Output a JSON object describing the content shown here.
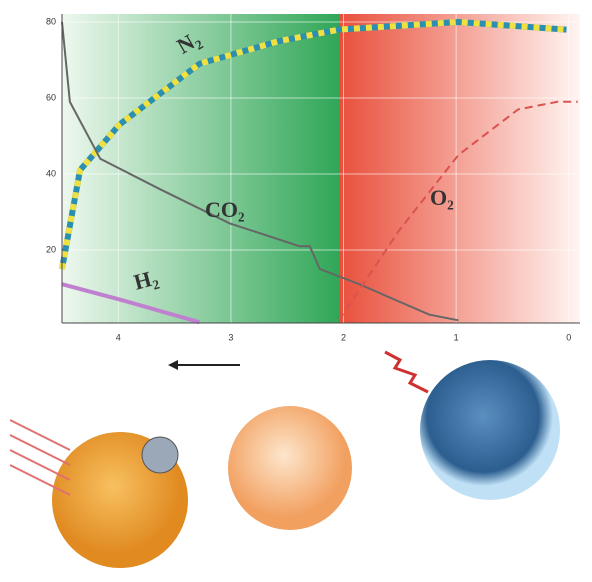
{
  "chart_data": {
    "type": "line",
    "xlim": [
      4.5,
      -0.1
    ],
    "xticks": [
      4,
      3,
      2,
      1,
      0
    ],
    "ylim": [
      0,
      80
    ],
    "yticks": [
      20,
      40,
      60,
      80
    ],
    "grid": true,
    "series": [
      {
        "name": "N₂",
        "color": "#2a8fb0",
        "x": [
          4.5,
          4.34,
          3.99,
          3.28,
          2.57,
          2.04,
          0.98,
          0.02
        ],
        "values": [
          15,
          41,
          53,
          69,
          75,
          78,
          80,
          78
        ]
      },
      {
        "name": "CO₂",
        "color": "#666666",
        "x": [
          4.5,
          4.43,
          4.16,
          3.63,
          3.01,
          2.39,
          2.3,
          2.21,
          1.86,
          1.24,
          0.98
        ],
        "values": [
          80,
          59,
          44,
          36,
          27,
          21,
          21,
          15,
          11,
          3,
          1.5
        ]
      },
      {
        "name": "O₂",
        "color": "#d9534f",
        "x": [
          2.04,
          1.51,
          0.98,
          0.45,
          0.1,
          -0.08
        ],
        "values": [
          1.5,
          25,
          45,
          57,
          59,
          59
        ]
      },
      {
        "name": "H₂",
        "color": "#c080d0",
        "x": [
          4.5,
          3.99,
          3.28
        ],
        "values": [
          11,
          7,
          1
        ]
      }
    ]
  }
}
